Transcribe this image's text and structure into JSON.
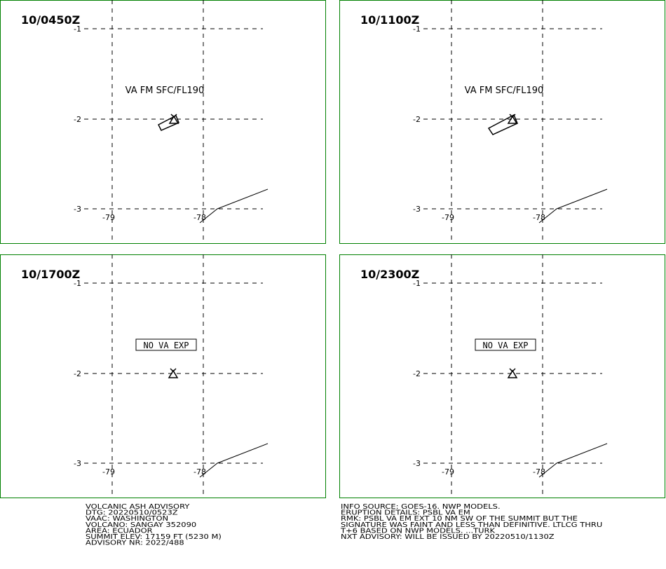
{
  "map": {
    "lat_labels": [
      "-1",
      "-2",
      "-3"
    ],
    "lon_labels": [
      "-79",
      "-78"
    ]
  },
  "panels": [
    {
      "time": "10/0450Z",
      "annotation": "VA FM SFC/FL190"
    },
    {
      "time": "10/1100Z",
      "annotation": "VA FM SFC/FL190"
    },
    {
      "time": "10/1700Z",
      "annotation": "NO VA EXP"
    },
    {
      "time": "10/2300Z",
      "annotation": "NO VA EXP"
    }
  ],
  "advisory_left": [
    "VOLCANIC ASH ADVISORY",
    "DTG: 20220510/0523Z",
    "VAAC: WASHINGTON",
    "VOLCANO: SANGAY 352090",
    "AREA: ECUADOR",
    "SUMMIT ELEV: 17159 FT (5230 M)",
    "ADVISORY NR: 2022/488"
  ],
  "advisory_right": [
    "INFO SOURCE: GOES-16. NWP MODELS.",
    "ERUPTION DETAILS: PSBL VA EM",
    "RMK: PSBL VA EM EXT 10 NM SW OF THE SUMMIT BUT THE",
    "SIGNATURE WAS FAINT AND LESS THAN DEFINITIVE. LTLCG THRU",
    "T+6 BASED ON NWP MODELS. ...TURK",
    "NXT ADVISORY: WILL BE ISSUED BY 20220510/1130Z"
  ]
}
